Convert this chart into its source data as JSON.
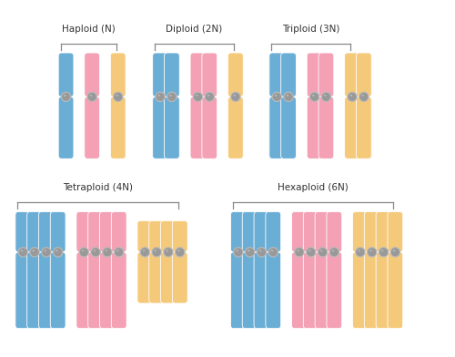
{
  "background_color": "#ffffff",
  "colors": {
    "blue": "#6aaed6",
    "blue_dark": "#5a9ec6",
    "pink": "#f4a0b5",
    "pink_dark": "#e490a5",
    "yellow": "#f5c97a",
    "yellow_dark": "#e5b96a",
    "centromere": "#999999",
    "centromere_light": "#bbbbbb",
    "bracket": "#888888",
    "text": "#333333"
  },
  "sections": {
    "haploid": {
      "label": "Haploid (N)",
      "bracket": [
        0.055,
        0.145
      ]
    },
    "diploid": {
      "label": "Diploid (2N)",
      "bracket": [
        0.22,
        0.385
      ]
    },
    "triploid": {
      "label": "Triploid (3N)",
      "bracket": [
        0.465,
        0.665
      ]
    },
    "tetraploid": {
      "label": "Tetraploid (4N)",
      "bracket": [
        0.025,
        0.345
      ]
    },
    "hexaploid": {
      "label": "Hexaploid (6N)",
      "bracket": [
        0.38,
        0.78
      ]
    }
  }
}
